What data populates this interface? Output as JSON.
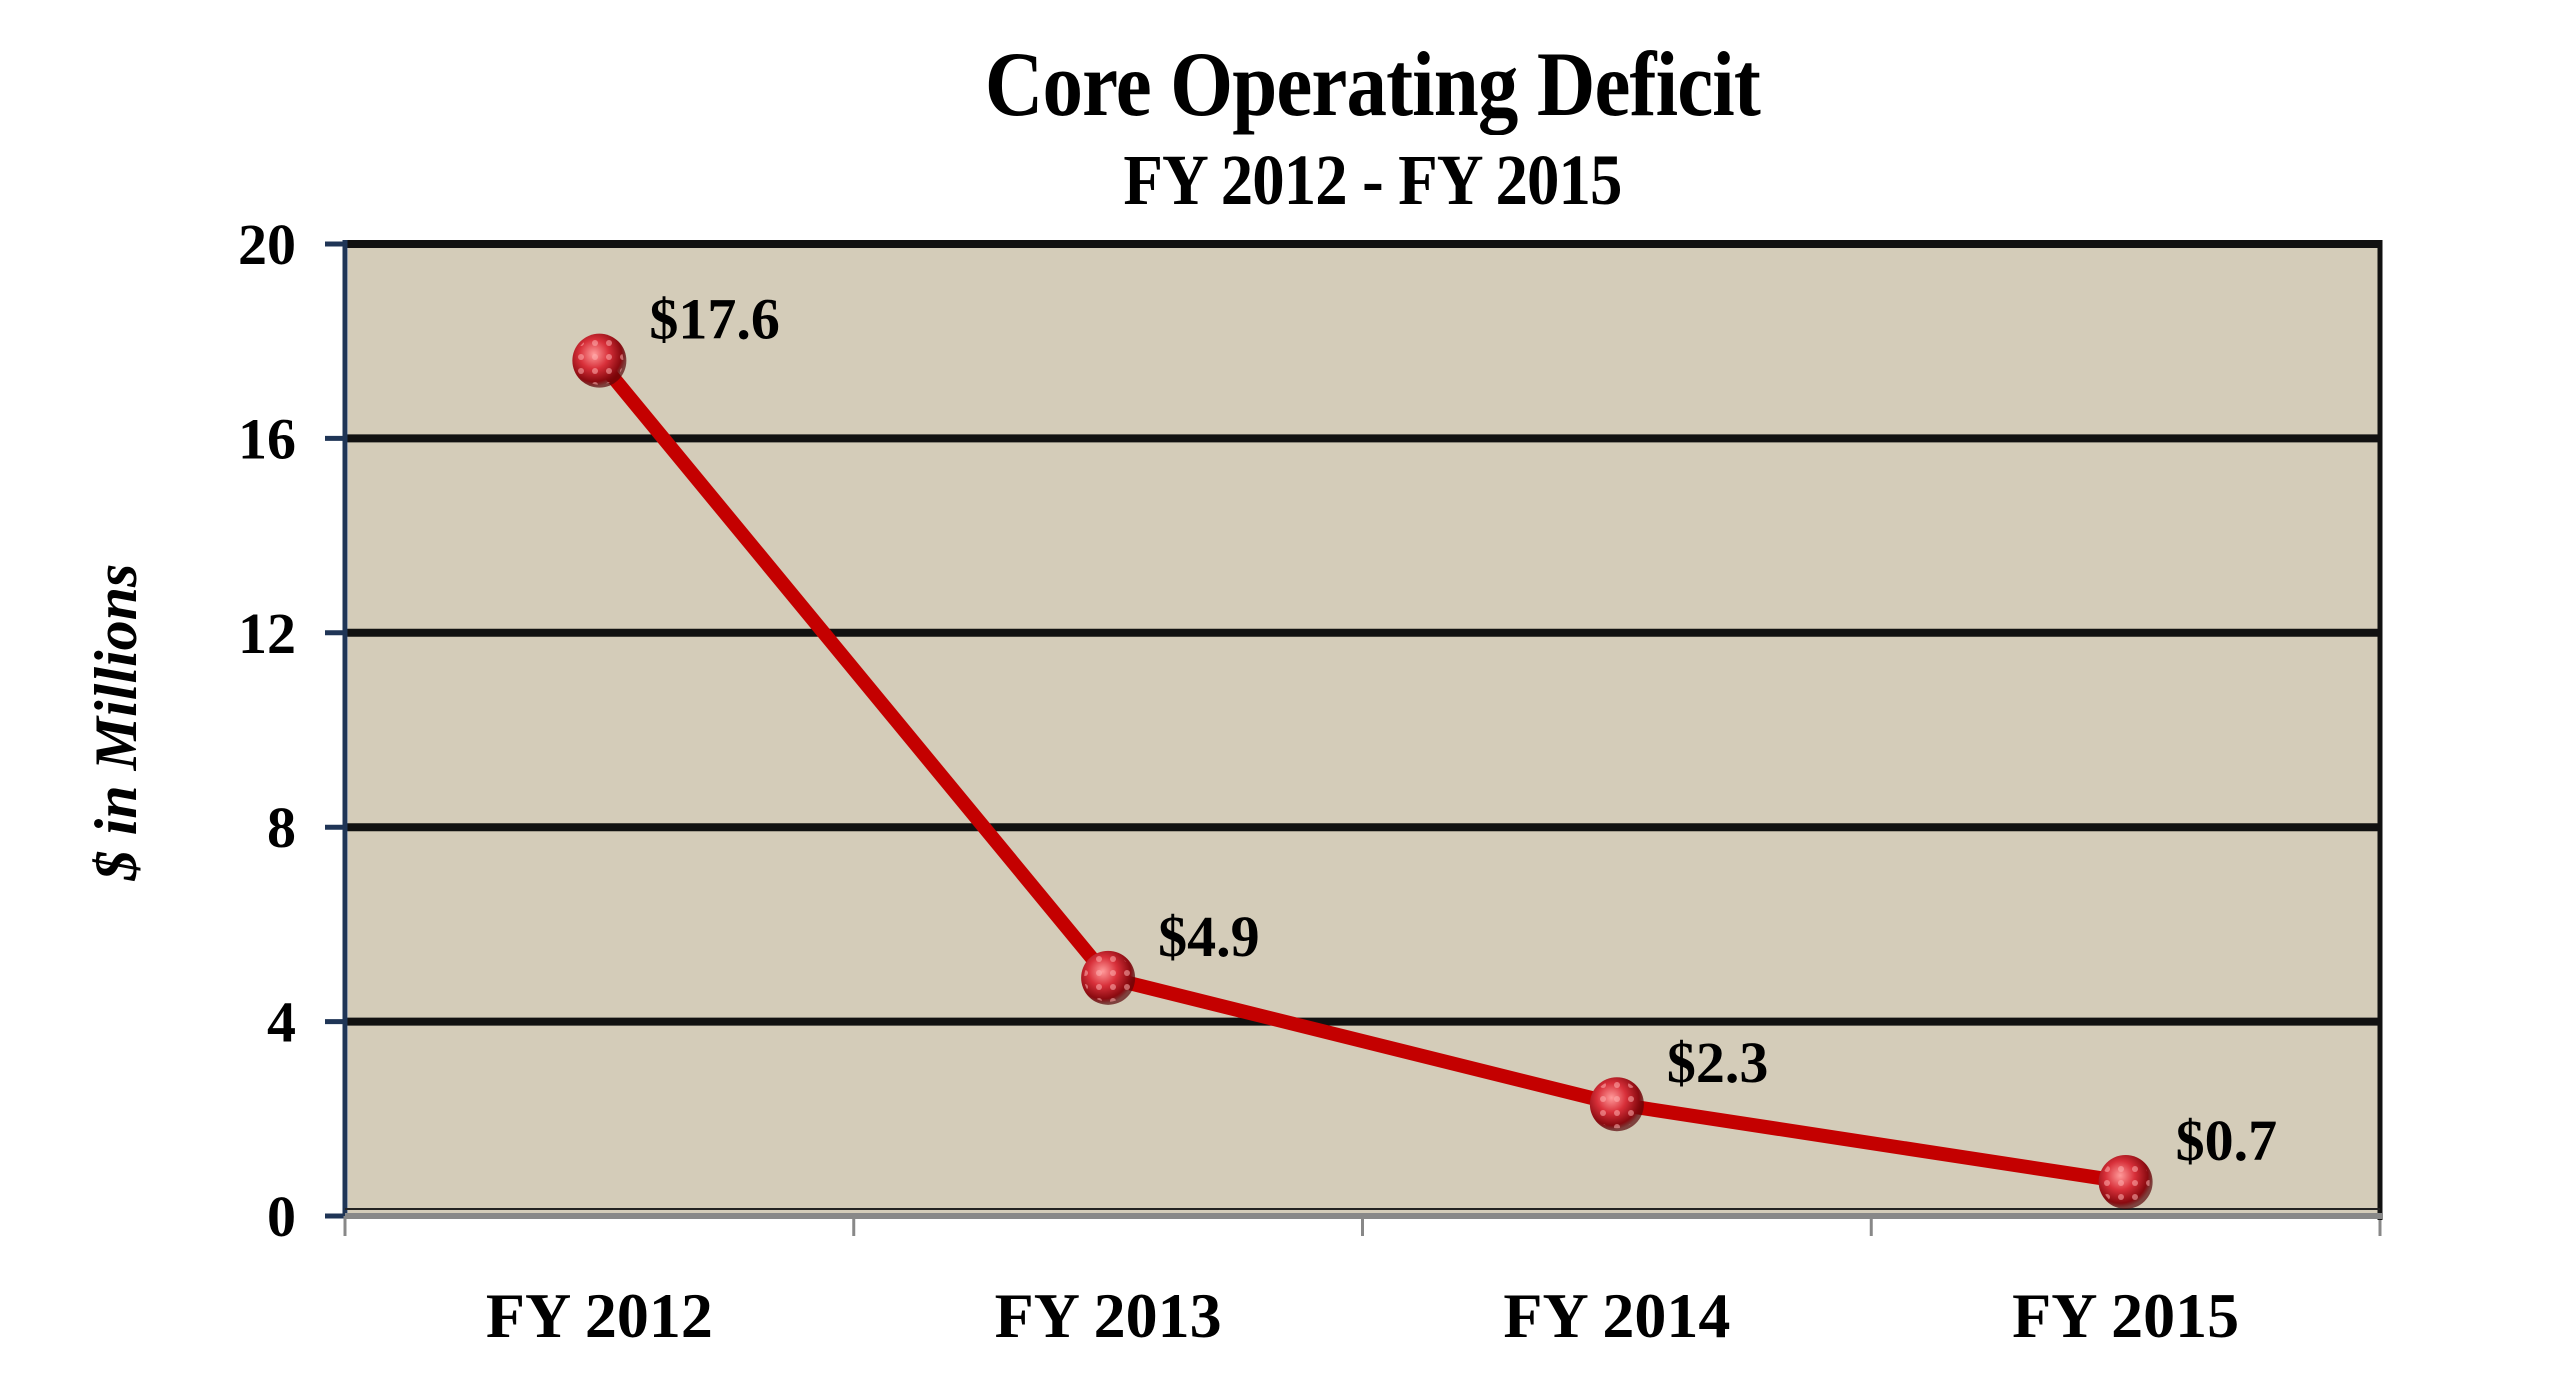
{
  "chart_data": {
    "type": "line",
    "title": "Core Operating Deficit",
    "subtitle": "FY 2012 - FY 2015",
    "xlabel": "",
    "ylabel": "$ in Millions",
    "categories": [
      "FY 2012",
      "FY 2013",
      "FY 2014",
      "FY 2015"
    ],
    "series": [
      {
        "name": "Core Operating Deficit",
        "values": [
          17.6,
          4.9,
          2.3,
          0.7
        ],
        "data_labels": [
          "$17.6",
          "$4.9",
          "$2.3",
          "$0.7"
        ],
        "color": "#c40000"
      }
    ],
    "ylim": [
      0,
      20
    ],
    "yticks": [
      0,
      4,
      8,
      12,
      16,
      20
    ],
    "ytick_labels": [
      "0",
      "4",
      "8",
      "12",
      "16",
      "20"
    ],
    "grid": true,
    "legend": null,
    "plot_background": "#d4ccb9",
    "gridline_color": "#111111",
    "axis_color": "#1f3556"
  }
}
